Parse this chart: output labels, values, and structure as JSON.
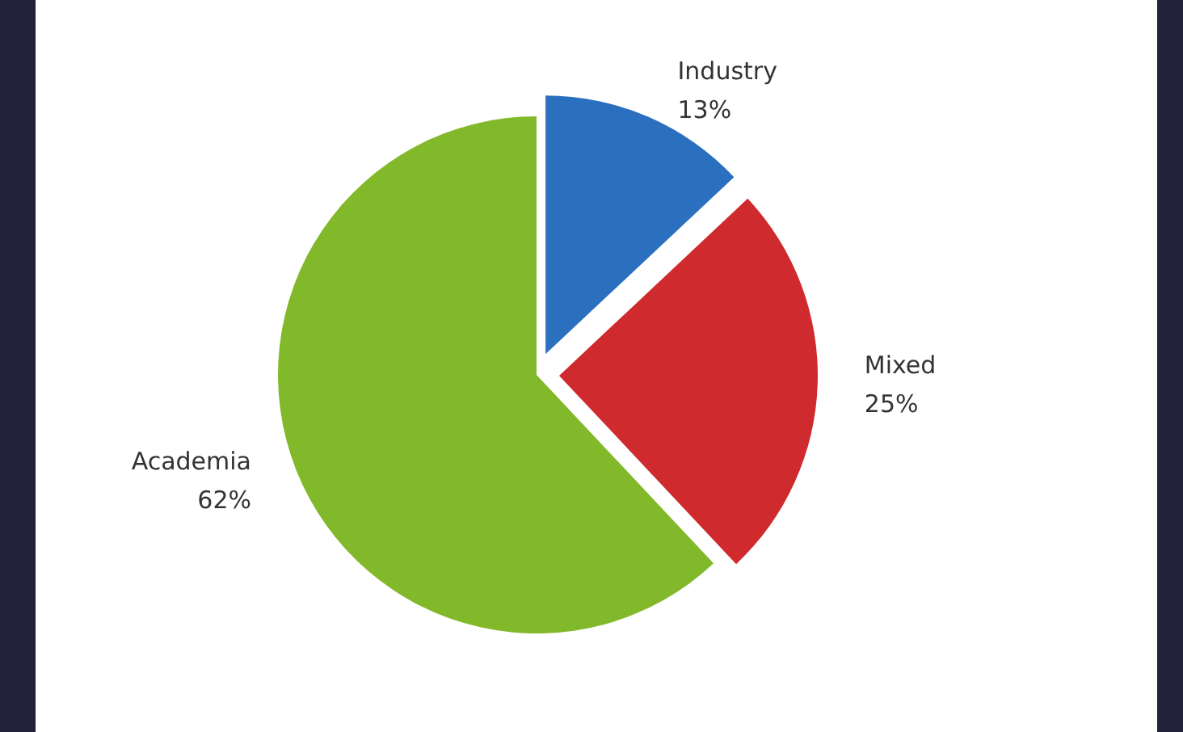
{
  "chart_data": {
    "type": "pie",
    "categories": [
      "Industry",
      "Mixed",
      "Academia"
    ],
    "values": [
      13,
      25,
      62
    ],
    "colors": [
      "#2b6fbf",
      "#cf2a2e",
      "#82b92a"
    ],
    "value_labels": [
      "13%",
      "25%",
      "62%"
    ]
  }
}
